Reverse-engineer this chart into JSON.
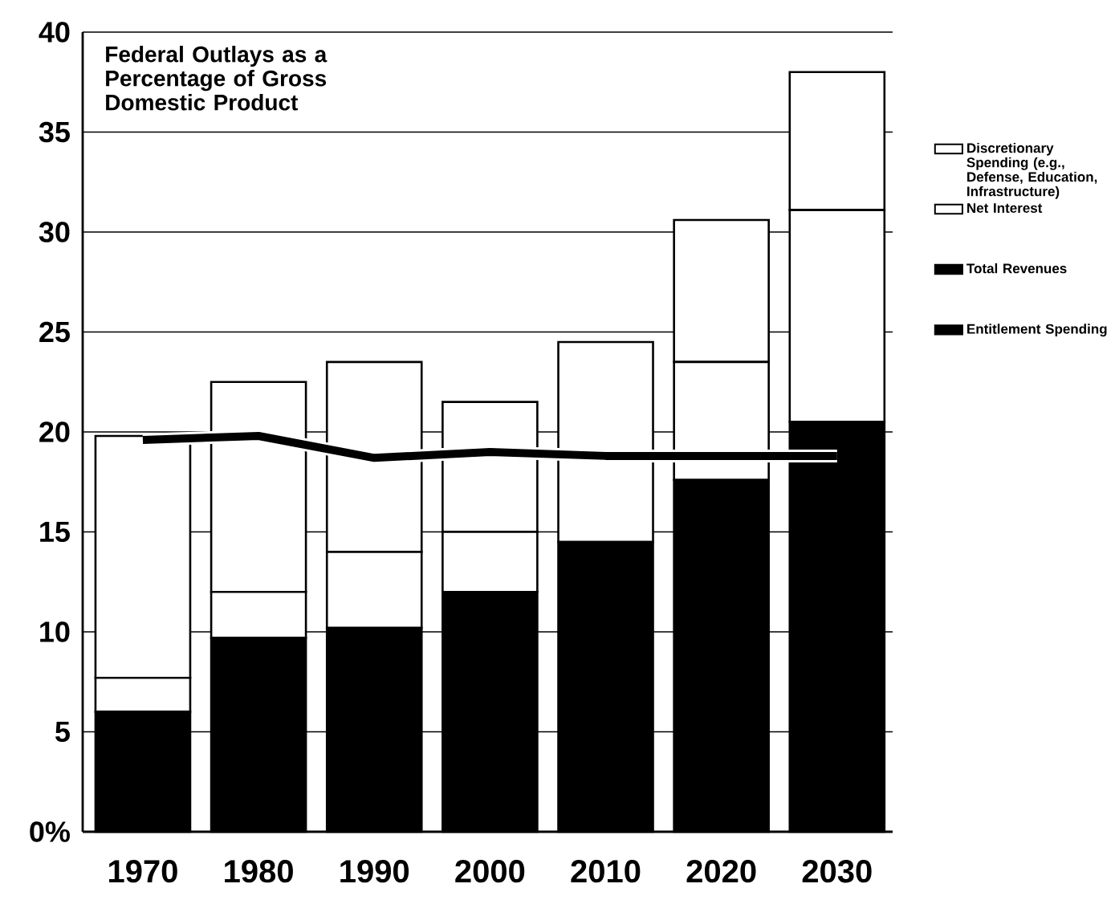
{
  "chart_data": {
    "type": "bar",
    "stacked": true,
    "title": "Federal Outlays as a Percentage of Gross Domestic Product",
    "categories": [
      "1970",
      "1980",
      "1990",
      "2000",
      "2010",
      "2020",
      "2030"
    ],
    "series": [
      {
        "name": "Entitlement Spending",
        "color": "#000000",
        "values": [
          6.0,
          9.7,
          10.2,
          12.0,
          14.5,
          17.6,
          20.5
        ]
      },
      {
        "name": "Net Interest",
        "color": "#ffffff",
        "values": [
          1.7,
          2.3,
          3.8,
          3.0,
          0,
          5.9,
          10.6
        ]
      },
      {
        "name": "Discretionary Spending (e.g., Defense, Education, Infrastructure)",
        "color": "#ffffff",
        "values": [
          12.1,
          10.5,
          9.5,
          6.5,
          10.0,
          7.1,
          6.9
        ]
      },
      {
        "name": "Total Revenues",
        "type": "line",
        "color": "#000000",
        "values": [
          19.6,
          19.8,
          18.7,
          19.0,
          18.8,
          18.8,
          18.8
        ]
      }
    ],
    "ylim": [
      0,
      40
    ],
    "yticks": [
      {
        "value": 0,
        "label": "0%"
      },
      5,
      10,
      15,
      20,
      25,
      30,
      35,
      40
    ],
    "grid": "y",
    "legend": "right"
  }
}
